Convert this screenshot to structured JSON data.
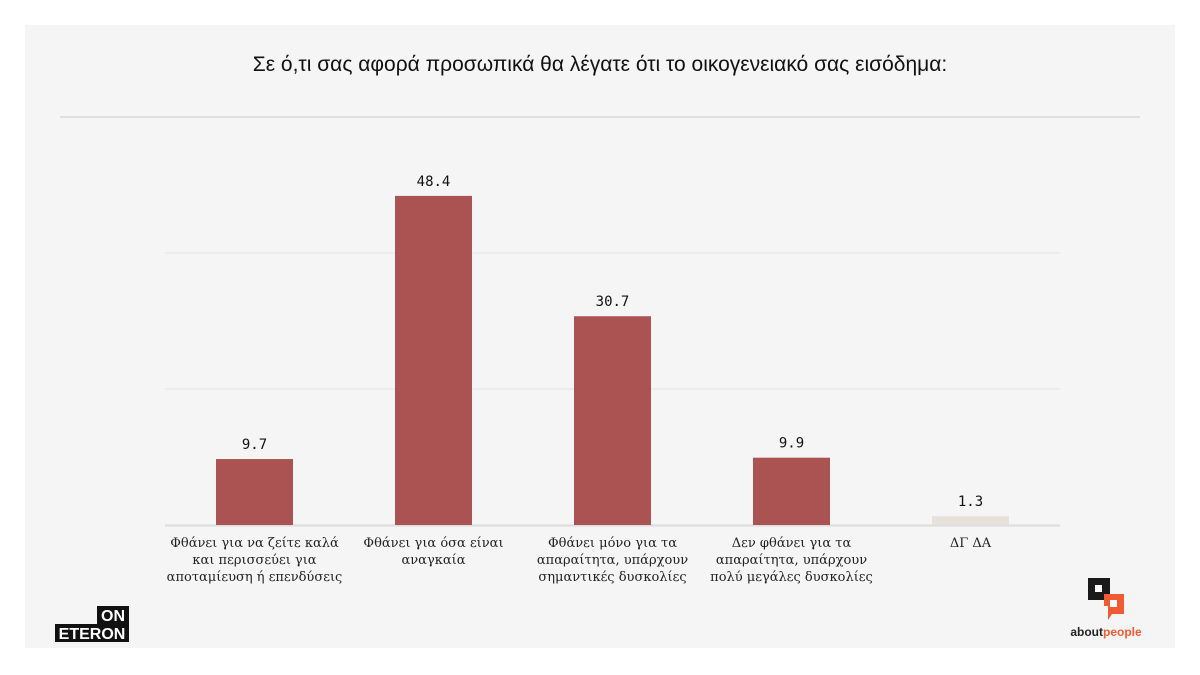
{
  "chart_data": {
    "type": "bar",
    "title": "Σε ό,τι σας αφορά προσωπικά θα λέγατε ότι το οικογενειακό σας εισόδημα:",
    "categories": [
      [
        "Φθάνει για να ζείτε καλά",
        "και περισσεύει για",
        "αποταμίευση ή επενδύσεις"
      ],
      [
        "Φθάνει για όσα είναι",
        "αναγκαία"
      ],
      [
        "Φθάνει μόνο για τα",
        "απαραίτητα, υπάρχουν",
        "σημαντικές δυσκολίες"
      ],
      [
        "Δεν φθάνει για τα",
        "απαραίτητα, υπάρχουν",
        "πολύ μεγάλες δυσκολίες"
      ],
      [
        "ΔΓ ΔΑ"
      ]
    ],
    "values": [
      9.7,
      48.4,
      30.7,
      9.9,
      1.3
    ],
    "value_labels": [
      "9.7",
      "48.4",
      "30.7",
      "9.9",
      "1.3"
    ],
    "colors": [
      "#ab5252",
      "#ab5252",
      "#ab5252",
      "#ab5252",
      "#e8e1d9"
    ],
    "ylim": [
      0,
      60
    ],
    "gridlines": [
      20,
      40
    ],
    "grid": true
  },
  "logos": {
    "left": "ON ETERON",
    "right_black": "about",
    "right_orange": "people",
    "accent": "#f05a34"
  }
}
